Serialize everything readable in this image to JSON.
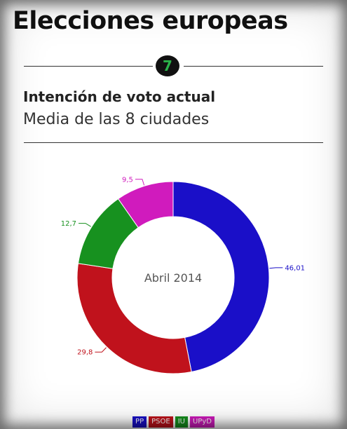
{
  "header": {
    "title": "Elecciones europeas",
    "badge": "7",
    "subtitle": "Intención de voto actual",
    "caption": "Media de las 8 ciudades"
  },
  "chart_data": {
    "type": "pie",
    "donut": true,
    "center_label": "Abril 2014",
    "categories": [
      "PP",
      "PSOE",
      "IU",
      "UPyD"
    ],
    "values": [
      46.01,
      29.8,
      12.7,
      9.5
    ],
    "labels": [
      "46,01",
      "29,8",
      "12,7",
      "9,5"
    ],
    "colors": [
      "#1a0fc8",
      "#c0121c",
      "#17911f",
      "#d01bbd"
    ],
    "legend_position": "bottom"
  }
}
